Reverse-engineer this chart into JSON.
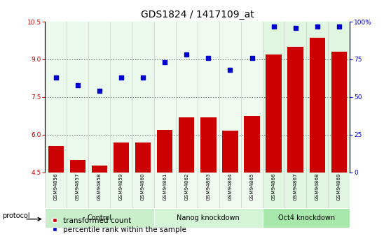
{
  "title": "GDS1824 / 1417109_at",
  "samples": [
    "GSM94856",
    "GSM94857",
    "GSM94858",
    "GSM94859",
    "GSM94860",
    "GSM94861",
    "GSM94862",
    "GSM94863",
    "GSM94864",
    "GSM94865",
    "GSM94866",
    "GSM94867",
    "GSM94868",
    "GSM94869"
  ],
  "bar_values": [
    5.55,
    5.0,
    4.78,
    5.7,
    5.7,
    6.2,
    6.7,
    6.7,
    6.15,
    6.75,
    9.2,
    9.5,
    9.85,
    9.3
  ],
  "dot_percentile": [
    63,
    58,
    54,
    63,
    63,
    73,
    78,
    76,
    68,
    76,
    97,
    96,
    97,
    97
  ],
  "groups": [
    {
      "label": "Control",
      "start": 0,
      "end": 5,
      "color": "#c8efca"
    },
    {
      "label": "Nanog knockdown",
      "start": 5,
      "end": 10,
      "color": "#d4f5d6"
    },
    {
      "label": "Oct4 knockdown",
      "start": 10,
      "end": 14,
      "color": "#a8e8aa"
    }
  ],
  "ylim_left": [
    4.5,
    10.5
  ],
  "ylim_right": [
    0,
    100
  ],
  "yticks_left": [
    4.5,
    6.0,
    7.5,
    9.0,
    10.5
  ],
  "yticks_right": [
    0,
    25,
    50,
    75,
    100
  ],
  "bar_color": "#cc0000",
  "dot_color": "#0000cc",
  "plot_bg_color": "#ffffff",
  "col_sep_color": "#cccccc",
  "grid_color": "#333333",
  "title_fontsize": 10,
  "tick_fontsize": 6.5,
  "legend_fontsize": 7.5,
  "bar_bottom": 4.5,
  "nanog_bg": "#e8f8e8"
}
